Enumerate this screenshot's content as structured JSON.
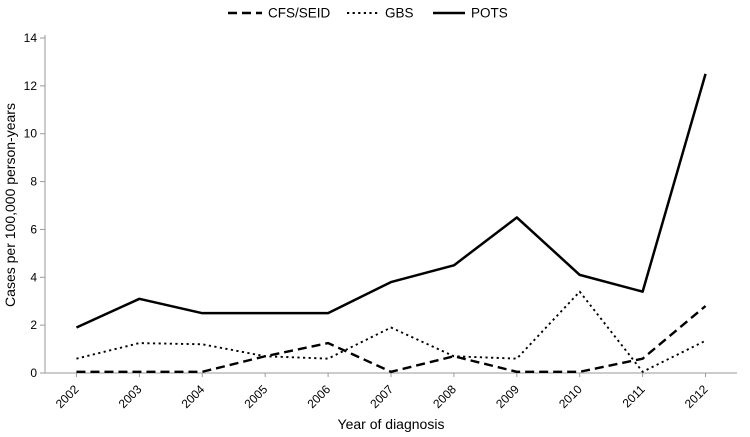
{
  "chart_data": {
    "type": "line",
    "title": "",
    "xlabel": "Year of diagnosis",
    "ylabel": "Cases per 100,000 person-years",
    "ylim": [
      0,
      14
    ],
    "ytick_step": 2,
    "categories": [
      "2002",
      "2003",
      "2004",
      "2005",
      "2006",
      "2007",
      "2008",
      "2009",
      "2010",
      "2011",
      "2012"
    ],
    "series": [
      {
        "name": "CFS/SEID",
        "style": "dashed",
        "values": [
          0.05,
          0.05,
          0.05,
          0.7,
          1.25,
          0.05,
          0.7,
          0.05,
          0.05,
          0.6,
          2.8
        ]
      },
      {
        "name": "GBS",
        "style": "dotted",
        "values": [
          0.6,
          1.25,
          1.2,
          0.7,
          0.6,
          1.9,
          0.7,
          0.6,
          3.4,
          0.05,
          1.35
        ]
      },
      {
        "name": "POTS",
        "style": "solid",
        "values": [
          1.9,
          3.1,
          2.5,
          2.5,
          2.5,
          3.8,
          4.5,
          6.5,
          4.1,
          3.4,
          12.5
        ]
      }
    ],
    "legend_position": "top",
    "grid": "off",
    "colors": {
      "line": "#000000",
      "axis": "#9a9a9a",
      "background": "#ffffff",
      "text": "#000000"
    }
  }
}
